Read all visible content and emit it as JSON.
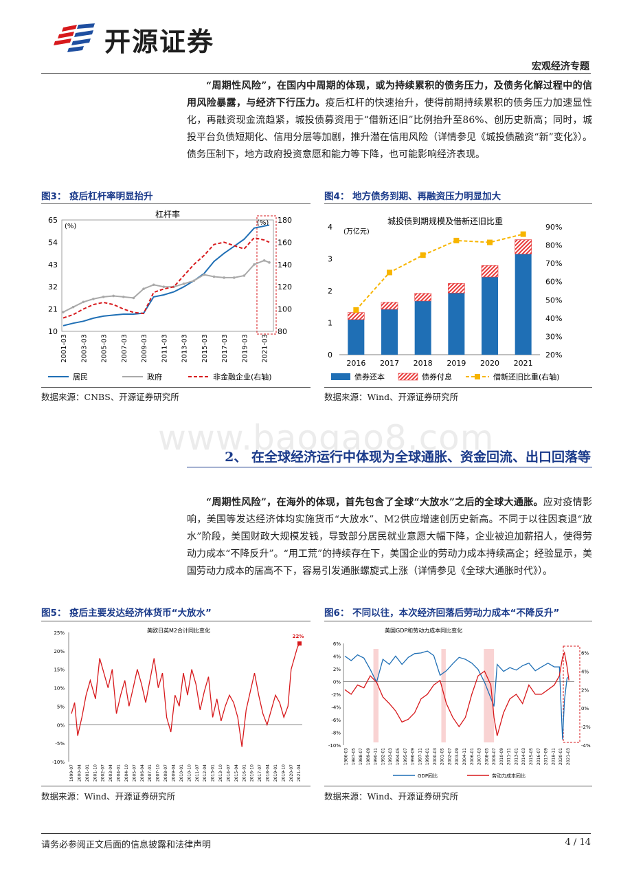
{
  "header": {
    "logo_text": "开源证券",
    "report_type": "宏观经济专题"
  },
  "para1": {
    "bold": "“周期性风险”，在国内中周期的体现，或为持续累积的债务压力，及债务化解过程中的信用风险暴露，与经济下行压力。",
    "normal": "疫后杠杆的快速抬升，使得前期持续累积的债务压力加速显性化，再融资现金流趋紧，城投债募资用于“借新还旧”比例抬升至86%、创历史新高；同时，城投平台负债短期化、信用分层等加剧，推升潜在信用风险（详情参见《城投债融资“新”变化》）。债务压制下，地方政府投资意愿和能力等下降，也可能影响经济表现。"
  },
  "fig3": {
    "title": "图3：  疫后杠杆率明显抬升",
    "source": "数据来源：CNBS、开源证券研究所",
    "chart_data": {
      "type": "line",
      "title": "杠杆率",
      "left_unit": "(%)",
      "right_unit": "(%)",
      "y_left_ticks": [
        "65",
        "54",
        "43",
        "32",
        "21",
        "10"
      ],
      "y_right_ticks": [
        "180",
        "160",
        "140",
        "120",
        "100",
        "80"
      ],
      "ylim_left": [
        10,
        65
      ],
      "ylim_right": [
        80,
        180
      ],
      "x_ticks": [
        "2001-03",
        "2003-03",
        "2005-03",
        "2007-03",
        "2009-03",
        "2011-03",
        "2013-03",
        "2015-03",
        "2017-03",
        "2019-03",
        "2021-03"
      ],
      "x_years": [
        2001,
        2002,
        2003,
        2004,
        2005,
        2006,
        2007,
        2008,
        2009,
        2010,
        2011,
        2012,
        2013,
        2014,
        2015,
        2016,
        2017,
        2018,
        2019,
        2020,
        2021,
        2021.5
      ],
      "series": [
        {
          "name": "居民",
          "axis": "left",
          "color": "#1f6fb5",
          "values": [
            12.8,
            14,
            15,
            16.5,
            17.5,
            18,
            18.5,
            18.5,
            19,
            27,
            28,
            29.5,
            32,
            35,
            38.5,
            44.5,
            48.5,
            52,
            55.5,
            61,
            62,
            62.5
          ]
        },
        {
          "name": "政府",
          "axis": "left",
          "color": "#a9a9a9",
          "values": [
            19.5,
            22,
            24.5,
            26,
            27,
            27.5,
            27,
            26.5,
            31,
            33,
            32,
            32,
            33.5,
            35,
            38,
            37,
            36.5,
            36.5,
            37.5,
            43,
            45,
            44
          ]
        },
        {
          "name": "非金融企业(右轴)",
          "axis": "right",
          "color": "#d7191c",
          "values": [
            92,
            95,
            100,
            104,
            106,
            104,
            100,
            97,
            96,
            115,
            118,
            120,
            130,
            140,
            148,
            158,
            160,
            157,
            154,
            164,
            162,
            160
          ]
        }
      ]
    }
  },
  "fig4": {
    "title": "图4：  地方债务到期、再融资压力明显加大",
    "source": "数据来源：Wind、开源证券研究所",
    "chart_data": {
      "type": "bar",
      "title": "城投债到期规模及借新还旧比重",
      "left_unit": "(万亿元)",
      "categories": [
        "2016",
        "2017",
        "2018",
        "2019",
        "2020",
        "2021"
      ],
      "y_left_ticks": [
        "4",
        "3",
        "2",
        "1",
        "0"
      ],
      "y_right_ticks": [
        "90%",
        "80%",
        "70%",
        "60%",
        "50%",
        "40%",
        "30%",
        "20%"
      ],
      "ylim_left": [
        0,
        4
      ],
      "ylim_right": [
        20,
        90
      ],
      "series": [
        {
          "name": "债券还本",
          "type": "bar",
          "color": "#1f6fb5",
          "values": [
            1.1,
            1.42,
            1.68,
            1.93,
            2.43,
            3.15
          ]
        },
        {
          "name": "债券付息",
          "type": "bar",
          "color": "#e83a3a",
          "values": [
            0.22,
            0.22,
            0.24,
            0.3,
            0.36,
            0.45
          ]
        },
        {
          "name": "借新还旧比重(右轴)",
          "type": "line",
          "color": "#f7b500",
          "values": [
            44.5,
            65,
            74.5,
            82.5,
            81.5,
            86
          ]
        }
      ]
    }
  },
  "watermark": "www.baogao8.com",
  "section2": {
    "title": "2、 在全球经济运行中体现为全球通胀、资金回流、出口回落等"
  },
  "para2": {
    "bold": "“周期性风险”，在海外的体现，首先包含了全球“大放水”之后的全球大通胀。",
    "normal": "应对疫情影响，美国等发达经济体均实施货币“大放水”、M2供应增速创历史新高。不同于以往因衰退“放水”阶段，美国财政大规模发钱，导致部分居民就业意愿大幅下降，企业被迫加薪招人，使得劳动力成本“不降反升”。“用工荒”的持续存在下，美国企业的劳动力成本持续高企；经验显示，美国劳动力成本的居高不下，容易引发通胀螺旋式上涨（详情参见《全球大通胀时代》）。"
  },
  "fig5": {
    "title": "图5：  疫后主要发达经济体货币“大放水”",
    "source": "数据来源：Wind、开源证券研究所",
    "chart_data": {
      "type": "line",
      "title": "美欧日英M2合计同比变化",
      "y_ticks": [
        "25%",
        "20%",
        "15%",
        "10%",
        "5%",
        "0%",
        "-5%",
        "-10%"
      ],
      "ylim": [
        -10,
        25
      ],
      "annotation": "22%",
      "x_ticks": [
        "1999-07",
        "2000-04",
        "2001-01",
        "2001-10",
        "2002-07",
        "2003-04",
        "2004-01",
        "2004-10",
        "2005-07",
        "2006-04",
        "2007-01",
        "2007-10",
        "2008-07",
        "2009-04",
        "2010-01",
        "2010-10",
        "2011-07",
        "2012-04",
        "2013-01",
        "2013-10",
        "2014-07",
        "2015-04",
        "2016-01",
        "2016-10",
        "2017-07",
        "2018-04",
        "2019-01",
        "2019-10",
        "2020-07",
        "2021-04"
      ],
      "series": [
        {
          "name": "美欧日英M2合计同比",
          "color": "#d7191c",
          "x": [
            1999.5,
            1999.8,
            2000.1,
            2000.5,
            2000.9,
            2001.3,
            2001.8,
            2002.2,
            2002.6,
            2003.0,
            2003.4,
            2003.8,
            2004.2,
            2004.6,
            2005.0,
            2005.4,
            2005.8,
            2006.2,
            2006.6,
            2007.0,
            2007.4,
            2007.8,
            2008.2,
            2008.6,
            2009.0,
            2009.4,
            2009.8,
            2010.2,
            2010.6,
            2011.0,
            2011.4,
            2011.8,
            2012.2,
            2012.6,
            2013.0,
            2013.4,
            2013.8,
            2014.2,
            2014.6,
            2015.0,
            2015.4,
            2015.8,
            2016.2,
            2016.6,
            2017.0,
            2017.4,
            2017.8,
            2018.2,
            2018.6,
            2019.0,
            2019.4,
            2019.8,
            2020.2,
            2020.5,
            2020.8,
            2021.1,
            2021.3
          ],
          "values": [
            3,
            6,
            -3,
            2,
            8,
            12,
            7,
            18,
            14,
            10,
            15,
            3,
            8,
            12,
            5,
            10,
            15,
            11,
            6,
            12,
            18,
            10,
            14,
            2,
            -2,
            8,
            5,
            14,
            8,
            15,
            11,
            4,
            9,
            13,
            2,
            7,
            1,
            5,
            8,
            6,
            2,
            -6,
            4,
            9,
            14,
            8,
            3,
            0,
            4,
            8,
            6,
            2,
            5,
            15,
            18,
            21,
            22
          ]
        }
      ]
    }
  },
  "fig6": {
    "title": "图6：  不同以往，本次经济回落后劳动力成本“不降反升”",
    "source": "数据来源：Wind、开源证券研究所",
    "chart_data": {
      "type": "line",
      "title": "美国GDP和劳动力成本同比变化",
      "y_left_ticks": [
        "6%",
        "4%",
        "2%",
        "0%",
        "-2%",
        "-4%",
        "-6%",
        "-8%",
        "-10%"
      ],
      "y_right_ticks": [
        "6%",
        "4%",
        "2%",
        "0%",
        "-2%",
        "-4%"
      ],
      "ylim_left": [
        -10,
        6
      ],
      "ylim_right": [
        -4,
        7
      ],
      "x_ticks": [
        "1986-03",
        "1987-05",
        "1988-07",
        "1989-09",
        "1990-11",
        "1992-01",
        "1993-03",
        "1994-05",
        "1995-07",
        "1996-09",
        "1997-11",
        "1999-01",
        "2000-03",
        "2001-05",
        "2002-07",
        "2003-09",
        "2004-11",
        "2006-01",
        "2007-03",
        "2008-05",
        "2009-07",
        "2010-09",
        "2011-11",
        "2013-01",
        "2014-03",
        "2015-05",
        "2016-07",
        "2017-09",
        "2018-11",
        "2020-01",
        "2021-03"
      ],
      "recessions": [
        [
          1990.5,
          1991.3
        ],
        [
          2001.2,
          2001.9
        ],
        [
          2007.9,
          2009.5
        ]
      ],
      "series": [
        {
          "name": "GDP同比",
          "axis": "left",
          "color": "#1f6fb5",
          "x": [
            1986,
            1987,
            1988,
            1989,
            1990,
            1991,
            1992,
            1993,
            1994,
            1995,
            1996,
            1997,
            1998,
            1999,
            2000,
            2001,
            2002,
            2003,
            2004,
            2005,
            2006,
            2007,
            2008,
            2009,
            2009.5,
            2010,
            2011,
            2012,
            2013,
            2014,
            2015,
            2016,
            2017,
            2018,
            2019,
            2019.8,
            2020.3,
            2020.6,
            2021,
            2021.3
          ],
          "values": [
            4,
            3.3,
            4.2,
            3.7,
            1.9,
            -0.1,
            3.5,
            2.7,
            4,
            2.7,
            3.8,
            4.4,
            4.5,
            4.8,
            4.1,
            1,
            1.7,
            2.8,
            3.8,
            3.5,
            2.9,
            1.9,
            -0.1,
            -2.6,
            -3.9,
            2.7,
            1.6,
            2.2,
            1.8,
            2.5,
            2.9,
            1.7,
            2.3,
            2.9,
            2.3,
            2.3,
            -9.1,
            -2.9,
            0.5,
            0.8
          ]
        },
        {
          "name": "劳动力成本同比",
          "axis": "right",
          "color": "#d7191c",
          "x": [
            1986,
            1987,
            1988,
            1989,
            1990,
            1991,
            1992,
            1993,
            1994,
            1995,
            1996,
            1997,
            1998,
            1999,
            2000,
            2001,
            2002,
            2003,
            2004,
            2005,
            2006,
            2007,
            2008,
            2009,
            2009.5,
            2010,
            2011,
            2012,
            2013,
            2014,
            2015,
            2016,
            2017,
            2018,
            2019,
            2019.8,
            2020.3,
            2020.6,
            2021,
            2021.3
          ],
          "values": [
            2,
            1.5,
            2.5,
            2.2,
            3.5,
            2.8,
            1.2,
            0.5,
            -0.3,
            -1.5,
            -1.2,
            -0.5,
            1,
            1.5,
            2.5,
            3,
            0.5,
            -1,
            -2,
            -1,
            1.5,
            3.5,
            4,
            2.5,
            -1,
            -3,
            -0.5,
            1,
            1.5,
            0.5,
            2.5,
            1.5,
            1.5,
            2,
            2.5,
            3.5,
            5.5,
            6,
            4.5,
            3
          ]
        }
      ]
    }
  },
  "footer": {
    "disclaimer": "请务必参阅正文后面的信息披露和法律声明",
    "page": "4 / 14"
  }
}
